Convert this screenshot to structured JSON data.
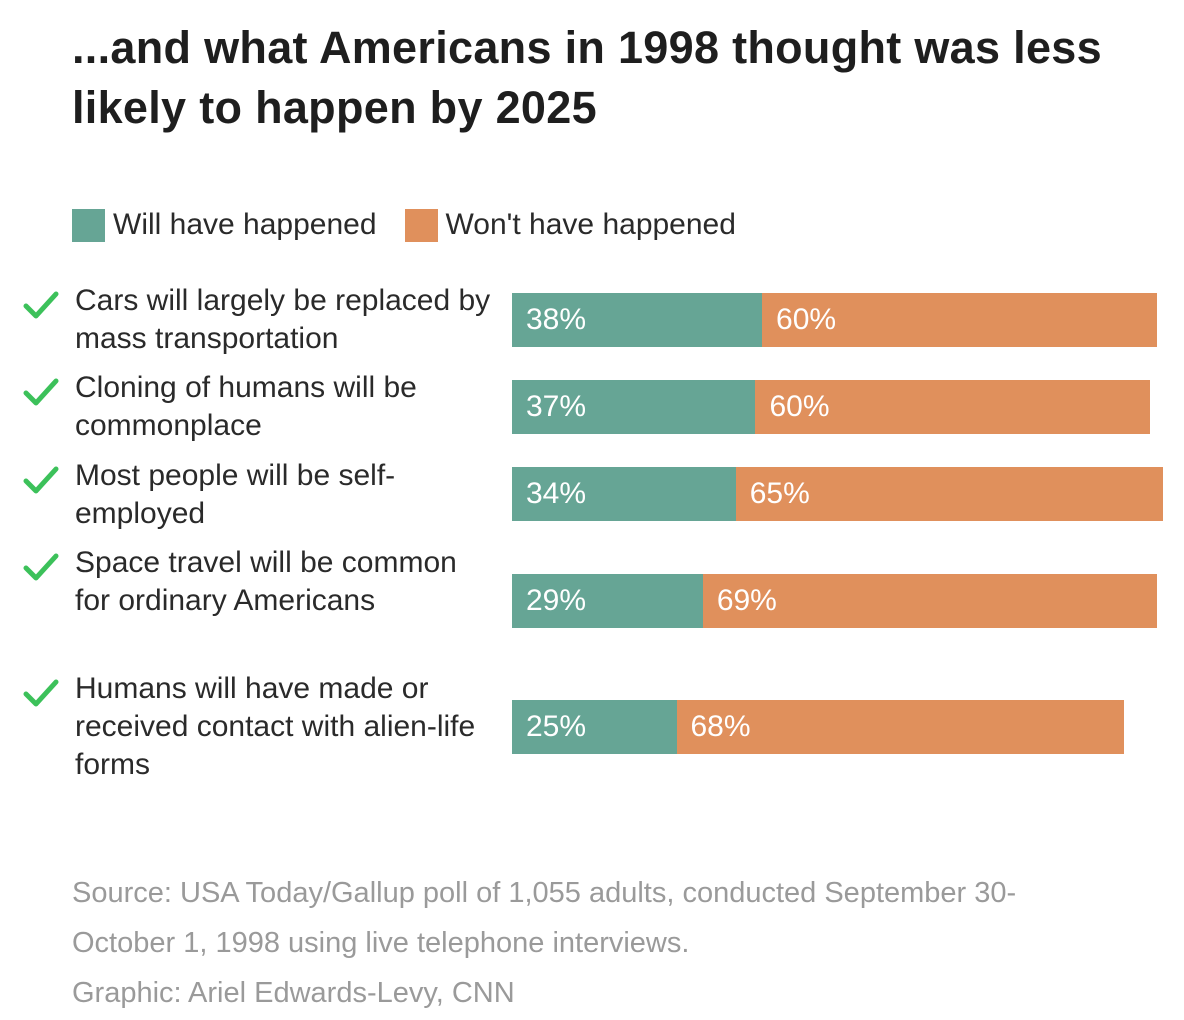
{
  "chart_data": {
    "type": "bar",
    "stacked": true,
    "orientation": "horizontal",
    "title": "...and what Americans in 1998 thought was less likely to happen by 2025",
    "legend": [
      {
        "label": "Will have happened",
        "color": "#66a595"
      },
      {
        "label": "Won't have happened",
        "color": "#e0905c"
      }
    ],
    "legend_placement": "top-left",
    "categories": [
      "Cars will largely be replaced by mass transportation",
      "Cloning of humans will be commonplace",
      "Most people will be self-employed",
      "Space travel will be common for ordinary Americans",
      "Humans will have made or received contact with alien-life forms"
    ],
    "series": [
      {
        "name": "Will have happened",
        "values": [
          38,
          37,
          34,
          29,
          25
        ]
      },
      {
        "name": "Won't have happened",
        "values": [
          60,
          60,
          65,
          69,
          68
        ]
      }
    ],
    "value_labels": [
      [
        "38%",
        "60%"
      ],
      [
        "37%",
        "60%"
      ],
      [
        "34%",
        "65%"
      ],
      [
        "29%",
        "69%"
      ],
      [
        "25%",
        "68%"
      ]
    ],
    "row_icon": "check-icon",
    "check_color": "#3cc15a",
    "xlim": [
      0,
      100
    ]
  },
  "source": {
    "line1": "Source: USA Today/Gallup poll of 1,055 adults, conducted September 30-",
    "line2": "October 1, 1998 using live telephone interviews.",
    "line3": "Graphic: Ariel Edwards-Levy, CNN"
  }
}
